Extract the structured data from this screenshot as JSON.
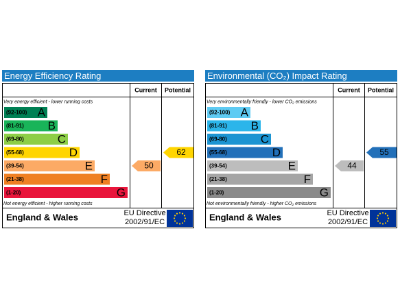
{
  "panels": [
    {
      "title": "Energy Efficiency Rating",
      "columns": [
        "Current",
        "Potential"
      ],
      "top_note": "Very energy efficient - lower running costs",
      "bottom_note": "Not energy efficient - higher running costs",
      "bands": [
        {
          "range": "(92-100)",
          "letter": "A",
          "color": "#008054"
        },
        {
          "range": "(81-91)",
          "letter": "B",
          "color": "#19b459"
        },
        {
          "range": "(69-80)",
          "letter": "C",
          "color": "#8dce46"
        },
        {
          "range": "(55-68)",
          "letter": "D",
          "color": "#ffd500"
        },
        {
          "range": "(39-54)",
          "letter": "E",
          "color": "#fcaa65"
        },
        {
          "range": "(21-38)",
          "letter": "F",
          "color": "#ef8023"
        },
        {
          "range": "(1-20)",
          "letter": "G",
          "color": "#e9153b"
        }
      ],
      "current": 50,
      "potential": 62,
      "region": "England & Wales",
      "directive": [
        "EU Directive",
        "2002/91/EC"
      ]
    },
    {
      "title": "Environmental (CO₂) Impact Rating",
      "columns": [
        "Current",
        "Potential"
      ],
      "top_note": "Very environmentally friendly - lower CO₂ emissions",
      "bottom_note": "Not environmentally friendly - higher CO₂ emissions",
      "bands": [
        {
          "range": "(92-100)",
          "letter": "A",
          "color": "#5fcbf3"
        },
        {
          "range": "(81-91)",
          "letter": "B",
          "color": "#2bb5ea"
        },
        {
          "range": "(69-80)",
          "letter": "C",
          "color": "#1c94d2"
        },
        {
          "range": "(55-68)",
          "letter": "D",
          "color": "#2270b9"
        },
        {
          "range": "(39-54)",
          "letter": "E",
          "color": "#bdbdbd"
        },
        {
          "range": "(21-38)",
          "letter": "F",
          "color": "#a5a5a5"
        },
        {
          "range": "(1-20)",
          "letter": "G",
          "color": "#8a8a8a"
        }
      ],
      "current": 44,
      "potential": 55,
      "region": "England & Wales",
      "directive": [
        "EU Directive",
        "2002/91/EC"
      ]
    }
  ]
}
